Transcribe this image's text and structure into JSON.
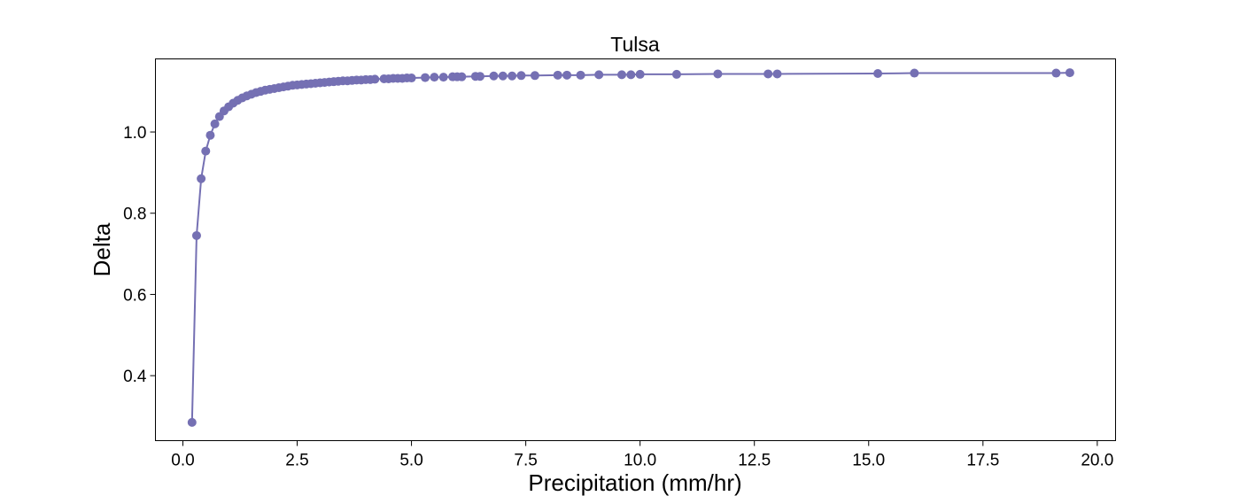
{
  "chart_data": {
    "type": "line",
    "title": "Tulsa",
    "xlabel": "Precipitation (mm/hr)",
    "ylabel": "Delta",
    "xlim": [
      -0.6,
      20.4
    ],
    "ylim": [
      0.24,
      1.18
    ],
    "x_ticks": [
      0.0,
      2.5,
      5.0,
      7.5,
      10.0,
      12.5,
      15.0,
      17.5,
      20.0
    ],
    "x_tick_labels": [
      "0.0",
      "2.5",
      "5.0",
      "7.5",
      "10.0",
      "12.5",
      "15.0",
      "17.5",
      "20.0"
    ],
    "y_ticks": [
      0.4,
      0.6,
      0.8,
      1.0
    ],
    "y_tick_labels": [
      "0.4",
      "0.6",
      "0.8",
      "1.0"
    ],
    "grid": false,
    "legend": "none",
    "color": "#7570b3",
    "markers": "circle",
    "series": [
      {
        "x": [
          0.2,
          0.3,
          0.4,
          0.5,
          0.6,
          0.7,
          0.8,
          0.9,
          1.0,
          1.1,
          1.2,
          1.3,
          1.4,
          1.5,
          1.6,
          1.7,
          1.8,
          1.9,
          2.0,
          2.1,
          2.2,
          2.3,
          2.4,
          2.5,
          2.6,
          2.7,
          2.8,
          2.9,
          3.0,
          3.1,
          3.2,
          3.3,
          3.4,
          3.5,
          3.6,
          3.7,
          3.8,
          3.9,
          4.0,
          4.1,
          4.2,
          4.4,
          4.5,
          4.6,
          4.7,
          4.8,
          4.9,
          5.0,
          5.3,
          5.5,
          5.7,
          5.9,
          6.0,
          6.1,
          6.4,
          6.5,
          6.8,
          7.0,
          7.2,
          7.4,
          7.7,
          8.2,
          8.4,
          8.7,
          9.1,
          9.6,
          9.8,
          10.0,
          10.8,
          11.7,
          12.8,
          13.0,
          15.2,
          16.0,
          19.1,
          19.4
        ],
        "y": [
          0.285,
          0.745,
          0.885,
          0.953,
          0.992,
          1.02,
          1.038,
          1.052,
          1.062,
          1.071,
          1.078,
          1.084,
          1.089,
          1.093,
          1.097,
          1.1,
          1.103,
          1.105,
          1.107,
          1.109,
          1.111,
          1.113,
          1.115,
          1.116,
          1.117,
          1.118,
          1.119,
          1.12,
          1.121,
          1.122,
          1.123,
          1.124,
          1.125,
          1.126,
          1.126,
          1.127,
          1.128,
          1.128,
          1.129,
          1.129,
          1.13,
          1.131,
          1.131,
          1.132,
          1.132,
          1.132,
          1.133,
          1.133,
          1.134,
          1.135,
          1.135,
          1.136,
          1.136,
          1.136,
          1.137,
          1.137,
          1.138,
          1.138,
          1.138,
          1.139,
          1.139,
          1.14,
          1.14,
          1.14,
          1.141,
          1.141,
          1.141,
          1.142,
          1.142,
          1.143,
          1.143,
          1.143,
          1.144,
          1.145,
          1.145,
          1.146
        ]
      }
    ]
  }
}
